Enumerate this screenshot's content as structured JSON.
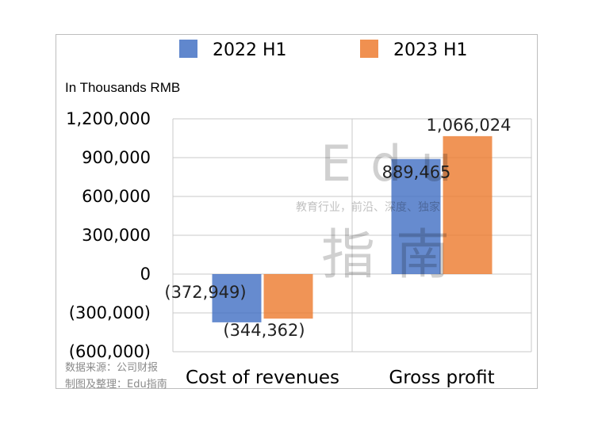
{
  "chart_data": {
    "type": "bar",
    "unit_label": "In Thousands RMB",
    "categories": [
      "Cost of revenues",
      "Gross profit"
    ],
    "series": [
      {
        "name": "2022 H1",
        "color": "#4472c4",
        "values": [
          -372949,
          889465
        ],
        "labels": [
          "(372,949)",
          "889,465"
        ]
      },
      {
        "name": "2023 H1",
        "color": "#ed7d31",
        "values": [
          -344362,
          1066024
        ],
        "labels": [
          "(344,362)",
          "1,066,024"
        ]
      }
    ],
    "ylim": [
      -600000,
      1200000
    ],
    "yticks": [
      {
        "value": 1200000,
        "label": "1,200,000"
      },
      {
        "value": 900000,
        "label": "900,000"
      },
      {
        "value": 600000,
        "label": "600,000"
      },
      {
        "value": 300000,
        "label": "300,000"
      },
      {
        "value": 0,
        "label": "0"
      },
      {
        "value": -300000,
        "label": "(300,000)"
      },
      {
        "value": -600000,
        "label": "(600,000)"
      }
    ],
    "grid": true,
    "legend": "top"
  },
  "source": {
    "line1": "数据来源：公司财报",
    "line2": "制图及整理：Edu指南"
  },
  "watermark": {
    "top": "Edu",
    "middle": "教育行业，前沿、深度、独家",
    "bottom": "指南"
  }
}
